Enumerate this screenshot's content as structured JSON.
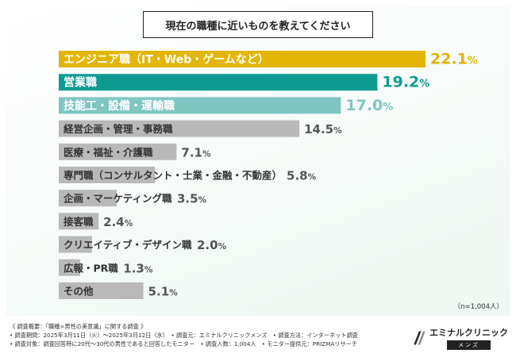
{
  "title": "現在の職種に近いものを教えてください",
  "n_note": "（n=1,004人）",
  "footer": {
    "line1": "《 調査概要：「職種×男性の美意識」に関する調査 》",
    "line2": "• 調査期間：2025年3月11日（火）～2025年3月12日（水）　• 調査元：エミナルクリニックメンズ　• 調査方法：インターネット調査",
    "line3": "• 調査対象：調査回答時に20代～30代の男性であると回答したモニター　• 調査人数：1,004人　• モニター提供元：PRIZMAリサーチ"
  },
  "logo": {
    "name": "エミナルクリニック",
    "sub": "メンズ"
  },
  "chart_data": {
    "type": "bar",
    "orientation": "horizontal",
    "title": "現在の職種に近いものを教えてください",
    "unit": "%",
    "categories": [
      "エンジニア職（IT・Web・ゲームなど）",
      "営業職",
      "技能工・設備・運輸職",
      "経営企画・管理・事務職",
      "医療・福祉・介護職",
      "専門職（コンサルタント・士業・金融・不動産）",
      "企画・マーケティング職",
      "接客職",
      "クリエイティブ・デザイン職",
      "広報・PR職",
      "その他"
    ],
    "values": [
      22.1,
      19.2,
      17.0,
      14.5,
      7.1,
      5.8,
      3.5,
      2.4,
      2.0,
      1.3,
      5.1
    ],
    "value_labels": [
      "22.1%",
      "19.2%",
      "17.0%",
      "14.5%",
      "7.1%",
      "5.8%",
      "3.5%",
      "2.4%",
      "2.0%",
      "1.3%",
      "5.1%"
    ],
    "colors": [
      "#e3b505",
      "#0e9c92",
      "#7fc6c2",
      "#b9b9b9",
      "#b9b9b9",
      "#b9b9b9",
      "#b9b9b9",
      "#b9b9b9",
      "#b9b9b9",
      "#b9b9b9",
      "#b9b9b9"
    ],
    "label_colors": [
      "#ffffff",
      "#ffffff",
      "#ffffff",
      "#333333",
      "#333333",
      "#333333",
      "#333333",
      "#333333",
      "#333333",
      "#333333",
      "#333333"
    ],
    "value_colors": [
      "#e3b505",
      "#0e9c92",
      "#7fc6c2",
      "#555555",
      "#555555",
      "#555555",
      "#555555",
      "#555555",
      "#555555",
      "#555555",
      "#555555"
    ],
    "xlim": [
      0,
      22.1
    ]
  }
}
